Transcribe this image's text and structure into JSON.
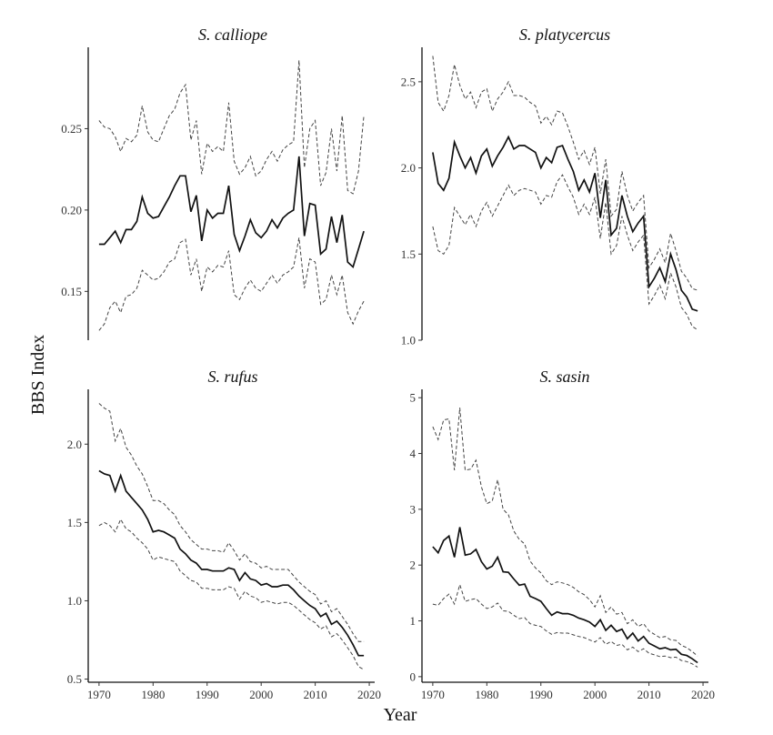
{
  "ylabel": "BBS Index",
  "xlabel": "Year",
  "chart_data": [
    {
      "type": "line",
      "title": "S. calliope",
      "ylim": [
        0.12,
        0.3
      ],
      "yticks": [
        0.15,
        0.2,
        0.25
      ],
      "ytick_labels": [
        "0.15",
        "0.20",
        "0.25"
      ],
      "xlim": [
        1968,
        2021
      ],
      "xticks": [
        1970,
        1980,
        1990,
        2000,
        2010,
        2020
      ],
      "xtick_labels": [
        "1970",
        "1980",
        "1990",
        "2000",
        "2010",
        "2020"
      ],
      "x": [
        1970,
        1971,
        1972,
        1973,
        1974,
        1975,
        1976,
        1977,
        1978,
        1979,
        1980,
        1981,
        1982,
        1983,
        1984,
        1985,
        1986,
        1987,
        1988,
        1989,
        1990,
        1991,
        1992,
        1993,
        1994,
        1995,
        1996,
        1997,
        1998,
        1999,
        2000,
        2001,
        2002,
        2003,
        2004,
        2005,
        2006,
        2007,
        2008,
        2009,
        2010,
        2011,
        2012,
        2013,
        2014,
        2015,
        2016,
        2017,
        2018,
        2019
      ],
      "series": [
        {
          "style": "mean",
          "values": [
            0.179,
            0.179,
            0.183,
            0.187,
            0.18,
            0.188,
            0.188,
            0.193,
            0.208,
            0.198,
            0.195,
            0.196,
            0.202,
            0.208,
            0.215,
            0.221,
            0.221,
            0.199,
            0.209,
            0.181,
            0.2,
            0.195,
            0.198,
            0.198,
            0.215,
            0.185,
            0.175,
            0.184,
            0.194,
            0.186,
            0.183,
            0.187,
            0.194,
            0.189,
            0.195,
            0.198,
            0.2,
            0.233,
            0.184,
            0.204,
            0.203,
            0.173,
            0.176,
            0.196,
            0.18,
            0.197,
            0.168,
            0.165,
            0.176,
            0.187
          ]
        },
        {
          "style": "upper",
          "values": [
            0.255,
            0.251,
            0.25,
            0.245,
            0.236,
            0.244,
            0.242,
            0.246,
            0.264,
            0.248,
            0.243,
            0.242,
            0.25,
            0.258,
            0.262,
            0.272,
            0.277,
            0.243,
            0.255,
            0.222,
            0.241,
            0.236,
            0.239,
            0.236,
            0.266,
            0.23,
            0.222,
            0.226,
            0.233,
            0.221,
            0.224,
            0.231,
            0.236,
            0.23,
            0.237,
            0.24,
            0.242,
            0.292,
            0.226,
            0.25,
            0.255,
            0.215,
            0.223,
            0.25,
            0.224,
            0.258,
            0.212,
            0.21,
            0.224,
            0.258
          ]
        },
        {
          "style": "lower",
          "values": [
            0.126,
            0.13,
            0.14,
            0.144,
            0.137,
            0.147,
            0.148,
            0.152,
            0.163,
            0.16,
            0.157,
            0.158,
            0.162,
            0.168,
            0.17,
            0.18,
            0.182,
            0.16,
            0.17,
            0.15,
            0.165,
            0.162,
            0.166,
            0.165,
            0.175,
            0.148,
            0.145,
            0.152,
            0.157,
            0.152,
            0.15,
            0.155,
            0.16,
            0.155,
            0.16,
            0.162,
            0.165,
            0.183,
            0.152,
            0.17,
            0.168,
            0.142,
            0.145,
            0.16,
            0.148,
            0.16,
            0.137,
            0.13,
            0.138,
            0.144
          ]
        }
      ]
    },
    {
      "type": "line",
      "title": "S. platycercus",
      "ylim": [
        1.0,
        2.7
      ],
      "yticks": [
        1.0,
        1.5,
        2.0,
        2.5
      ],
      "ytick_labels": [
        "1.0",
        "1.5",
        "2.0",
        "2.5"
      ],
      "xlim": [
        1968,
        2021
      ],
      "xticks": [
        1970,
        1980,
        1990,
        2000,
        2010,
        2020
      ],
      "xtick_labels": [
        "1970",
        "1980",
        "1990",
        "2000",
        "2010",
        "2020"
      ],
      "x": [
        1970,
        1971,
        1972,
        1973,
        1974,
        1975,
        1976,
        1977,
        1978,
        1979,
        1980,
        1981,
        1982,
        1983,
        1984,
        1985,
        1986,
        1987,
        1988,
        1989,
        1990,
        1991,
        1992,
        1993,
        1994,
        1995,
        1996,
        1997,
        1998,
        1999,
        2000,
        2001,
        2002,
        2003,
        2004,
        2005,
        2006,
        2007,
        2008,
        2009,
        2010,
        2011,
        2012,
        2013,
        2014,
        2015,
        2016,
        2017,
        2018,
        2019
      ],
      "series": [
        {
          "style": "mean",
          "values": [
            2.09,
            1.91,
            1.87,
            1.94,
            2.15,
            2.07,
            2.0,
            2.06,
            1.97,
            2.07,
            2.11,
            2.01,
            2.07,
            2.12,
            2.18,
            2.11,
            2.13,
            2.13,
            2.11,
            2.09,
            2.0,
            2.06,
            2.03,
            2.12,
            2.13,
            2.05,
            1.98,
            1.87,
            1.93,
            1.86,
            1.97,
            1.71,
            1.93,
            1.61,
            1.65,
            1.84,
            1.72,
            1.63,
            1.68,
            1.72,
            1.31,
            1.36,
            1.42,
            1.34,
            1.5,
            1.41,
            1.29,
            1.25,
            1.18,
            1.17
          ]
        },
        {
          "style": "upper",
          "values": [
            2.65,
            2.38,
            2.33,
            2.42,
            2.6,
            2.48,
            2.4,
            2.44,
            2.35,
            2.44,
            2.46,
            2.33,
            2.4,
            2.44,
            2.5,
            2.42,
            2.42,
            2.41,
            2.38,
            2.36,
            2.26,
            2.3,
            2.25,
            2.33,
            2.32,
            2.24,
            2.15,
            2.05,
            2.1,
            2.02,
            2.12,
            1.85,
            2.05,
            1.72,
            1.76,
            1.98,
            1.84,
            1.75,
            1.8,
            1.84,
            1.42,
            1.47,
            1.53,
            1.45,
            1.62,
            1.52,
            1.4,
            1.36,
            1.3,
            1.29
          ]
        },
        {
          "style": "lower",
          "values": [
            1.66,
            1.52,
            1.5,
            1.55,
            1.77,
            1.72,
            1.67,
            1.73,
            1.66,
            1.75,
            1.8,
            1.72,
            1.78,
            1.84,
            1.9,
            1.84,
            1.87,
            1.88,
            1.87,
            1.86,
            1.79,
            1.84,
            1.83,
            1.92,
            1.96,
            1.89,
            1.83,
            1.73,
            1.79,
            1.73,
            1.83,
            1.59,
            1.8,
            1.5,
            1.55,
            1.72,
            1.61,
            1.52,
            1.57,
            1.61,
            1.21,
            1.26,
            1.32,
            1.24,
            1.39,
            1.31,
            1.19,
            1.15,
            1.08,
            1.06
          ]
        }
      ]
    },
    {
      "type": "line",
      "title": "S. rufus",
      "ylim": [
        0.48,
        2.35
      ],
      "yticks": [
        0.5,
        1.0,
        1.5,
        2.0
      ],
      "ytick_labels": [
        "0.5",
        "1.0",
        "1.5",
        "2.0"
      ],
      "xlim": [
        1968,
        2021
      ],
      "xticks": [
        1970,
        1980,
        1990,
        2000,
        2010,
        2020
      ],
      "xtick_labels": [
        "1970",
        "1980",
        "1990",
        "2000",
        "2010",
        "2020"
      ],
      "x": [
        1970,
        1971,
        1972,
        1973,
        1974,
        1975,
        1976,
        1977,
        1978,
        1979,
        1980,
        1981,
        1982,
        1983,
        1984,
        1985,
        1986,
        1987,
        1988,
        1989,
        1990,
        1991,
        1992,
        1993,
        1994,
        1995,
        1996,
        1997,
        1998,
        1999,
        2000,
        2001,
        2002,
        2003,
        2004,
        2005,
        2006,
        2007,
        2008,
        2009,
        2010,
        2011,
        2012,
        2013,
        2014,
        2015,
        2016,
        2017,
        2018,
        2019
      ],
      "series": [
        {
          "style": "mean",
          "values": [
            1.83,
            1.81,
            1.8,
            1.7,
            1.8,
            1.7,
            1.66,
            1.62,
            1.58,
            1.52,
            1.44,
            1.45,
            1.44,
            1.42,
            1.4,
            1.33,
            1.3,
            1.26,
            1.24,
            1.2,
            1.2,
            1.19,
            1.19,
            1.19,
            1.21,
            1.2,
            1.13,
            1.18,
            1.14,
            1.13,
            1.1,
            1.11,
            1.09,
            1.09,
            1.1,
            1.1,
            1.07,
            1.03,
            1.0,
            0.97,
            0.95,
            0.9,
            0.92,
            0.85,
            0.87,
            0.83,
            0.78,
            0.72,
            0.65,
            0.65
          ]
        },
        {
          "style": "upper",
          "values": [
            2.26,
            2.23,
            2.21,
            2.02,
            2.1,
            1.98,
            1.93,
            1.86,
            1.81,
            1.73,
            1.64,
            1.64,
            1.62,
            1.58,
            1.55,
            1.48,
            1.44,
            1.39,
            1.36,
            1.33,
            1.33,
            1.32,
            1.32,
            1.31,
            1.37,
            1.32,
            1.26,
            1.3,
            1.25,
            1.24,
            1.21,
            1.22,
            1.2,
            1.2,
            1.2,
            1.2,
            1.16,
            1.12,
            1.09,
            1.06,
            1.04,
            0.98,
            1.0,
            0.93,
            0.95,
            0.9,
            0.85,
            0.79,
            0.74,
            0.74
          ]
        },
        {
          "style": "lower",
          "values": [
            1.48,
            1.5,
            1.48,
            1.44,
            1.52,
            1.46,
            1.44,
            1.4,
            1.37,
            1.33,
            1.26,
            1.28,
            1.27,
            1.26,
            1.25,
            1.19,
            1.16,
            1.13,
            1.12,
            1.08,
            1.08,
            1.07,
            1.07,
            1.07,
            1.09,
            1.08,
            1.01,
            1.06,
            1.03,
            1.02,
            0.99,
            1.0,
            0.99,
            0.98,
            0.99,
            0.99,
            0.97,
            0.94,
            0.91,
            0.88,
            0.86,
            0.82,
            0.84,
            0.77,
            0.79,
            0.75,
            0.7,
            0.65,
            0.58,
            0.56
          ]
        }
      ]
    },
    {
      "type": "line",
      "title": "S. sasin",
      "ylim": [
        -0.1,
        5.15
      ],
      "yticks": [
        0,
        1,
        2,
        3,
        4,
        5
      ],
      "ytick_labels": [
        "0",
        "1",
        "2",
        "3",
        "4",
        "5"
      ],
      "xlim": [
        1968,
        2021
      ],
      "xticks": [
        1970,
        1980,
        1990,
        2000,
        2010,
        2020
      ],
      "xtick_labels": [
        "1970",
        "1980",
        "1990",
        "2000",
        "2010",
        "2020"
      ],
      "x": [
        1970,
        1971,
        1972,
        1973,
        1974,
        1975,
        1976,
        1977,
        1978,
        1979,
        1980,
        1981,
        1982,
        1983,
        1984,
        1985,
        1986,
        1987,
        1988,
        1989,
        1990,
        1991,
        1992,
        1993,
        1994,
        1995,
        1996,
        1997,
        1998,
        1999,
        2000,
        2001,
        2002,
        2003,
        2004,
        2005,
        2006,
        2007,
        2008,
        2009,
        2010,
        2011,
        2012,
        2013,
        2014,
        2015,
        2016,
        2017,
        2018,
        2019
      ],
      "series": [
        {
          "style": "mean",
          "values": [
            2.33,
            2.22,
            2.44,
            2.52,
            2.14,
            2.68,
            2.18,
            2.2,
            2.28,
            2.06,
            1.93,
            1.98,
            2.14,
            1.88,
            1.87,
            1.75,
            1.64,
            1.66,
            1.44,
            1.4,
            1.35,
            1.22,
            1.1,
            1.16,
            1.13,
            1.13,
            1.1,
            1.05,
            1.02,
            0.98,
            0.9,
            1.02,
            0.83,
            0.92,
            0.81,
            0.85,
            0.68,
            0.78,
            0.64,
            0.72,
            0.6,
            0.55,
            0.5,
            0.52,
            0.48,
            0.49,
            0.4,
            0.38,
            0.32,
            0.25
          ]
        },
        {
          "style": "upper",
          "values": [
            4.48,
            4.25,
            4.6,
            4.62,
            3.7,
            4.82,
            3.7,
            3.72,
            3.88,
            3.4,
            3.1,
            3.15,
            3.53,
            3.0,
            2.9,
            2.61,
            2.46,
            2.38,
            2.07,
            1.95,
            1.86,
            1.72,
            1.65,
            1.7,
            1.68,
            1.65,
            1.6,
            1.52,
            1.47,
            1.38,
            1.25,
            1.45,
            1.15,
            1.25,
            1.12,
            1.15,
            0.95,
            1.02,
            0.9,
            0.95,
            0.82,
            0.76,
            0.7,
            0.72,
            0.66,
            0.65,
            0.56,
            0.52,
            0.45,
            0.37
          ]
        },
        {
          "style": "lower",
          "values": [
            1.3,
            1.28,
            1.4,
            1.48,
            1.3,
            1.65,
            1.35,
            1.38,
            1.4,
            1.3,
            1.22,
            1.25,
            1.32,
            1.18,
            1.17,
            1.1,
            1.04,
            1.06,
            0.95,
            0.92,
            0.9,
            0.82,
            0.76,
            0.79,
            0.78,
            0.78,
            0.75,
            0.72,
            0.7,
            0.66,
            0.62,
            0.7,
            0.58,
            0.63,
            0.56,
            0.58,
            0.48,
            0.53,
            0.45,
            0.5,
            0.42,
            0.39,
            0.36,
            0.37,
            0.34,
            0.35,
            0.29,
            0.27,
            0.23,
            0.17
          ]
        }
      ]
    }
  ]
}
